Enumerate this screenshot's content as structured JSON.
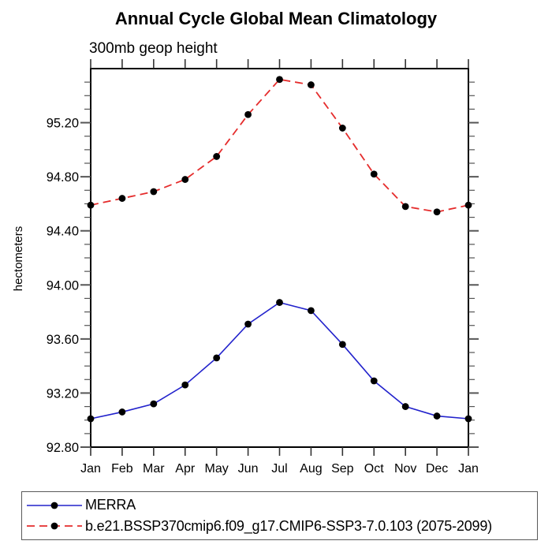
{
  "chart_data": {
    "type": "line",
    "title": "Annual Cycle Global Mean Climatology",
    "subtitle": "300mb geop height",
    "ylabel": "hectometers",
    "x_categories": [
      "Jan",
      "Feb",
      "Mar",
      "Apr",
      "May",
      "Jun",
      "Jul",
      "Aug",
      "Sep",
      "Oct",
      "Nov",
      "Dec",
      "Jan"
    ],
    "ylim": [
      92.8,
      95.6
    ],
    "y_ticks_major": [
      92.8,
      93.2,
      93.6,
      94.0,
      94.4,
      94.8,
      95.2
    ],
    "y_tick_labels": [
      "92.80",
      "93.20",
      "93.60",
      "94.00",
      "94.40",
      "94.80",
      "95.20"
    ],
    "y_minor_step": 0.1,
    "grid": false,
    "legend_position": "bottom-left-box",
    "frame_color": "#000000",
    "tick_color": "#555555",
    "series": [
      {
        "name": "MERRA",
        "color": "#2222cc",
        "style": "solid",
        "dash": "none",
        "marker": "circle",
        "marker_color": "#000000",
        "values": [
          93.01,
          93.06,
          93.12,
          93.26,
          93.46,
          93.71,
          93.87,
          93.81,
          93.56,
          93.29,
          93.1,
          93.03,
          93.01
        ]
      },
      {
        "name": "b.e21.BSSP370cmip6.f09_g17.CMIP6-SSP3-7.0.103 (2075-2099)",
        "color": "#e52c2c",
        "style": "dashed",
        "dash": "10 6",
        "marker": "circle",
        "marker_color": "#000000",
        "values": [
          94.59,
          94.64,
          94.69,
          94.78,
          94.95,
          95.26,
          95.52,
          95.48,
          95.16,
          94.82,
          94.58,
          94.54,
          94.59
        ]
      }
    ]
  }
}
